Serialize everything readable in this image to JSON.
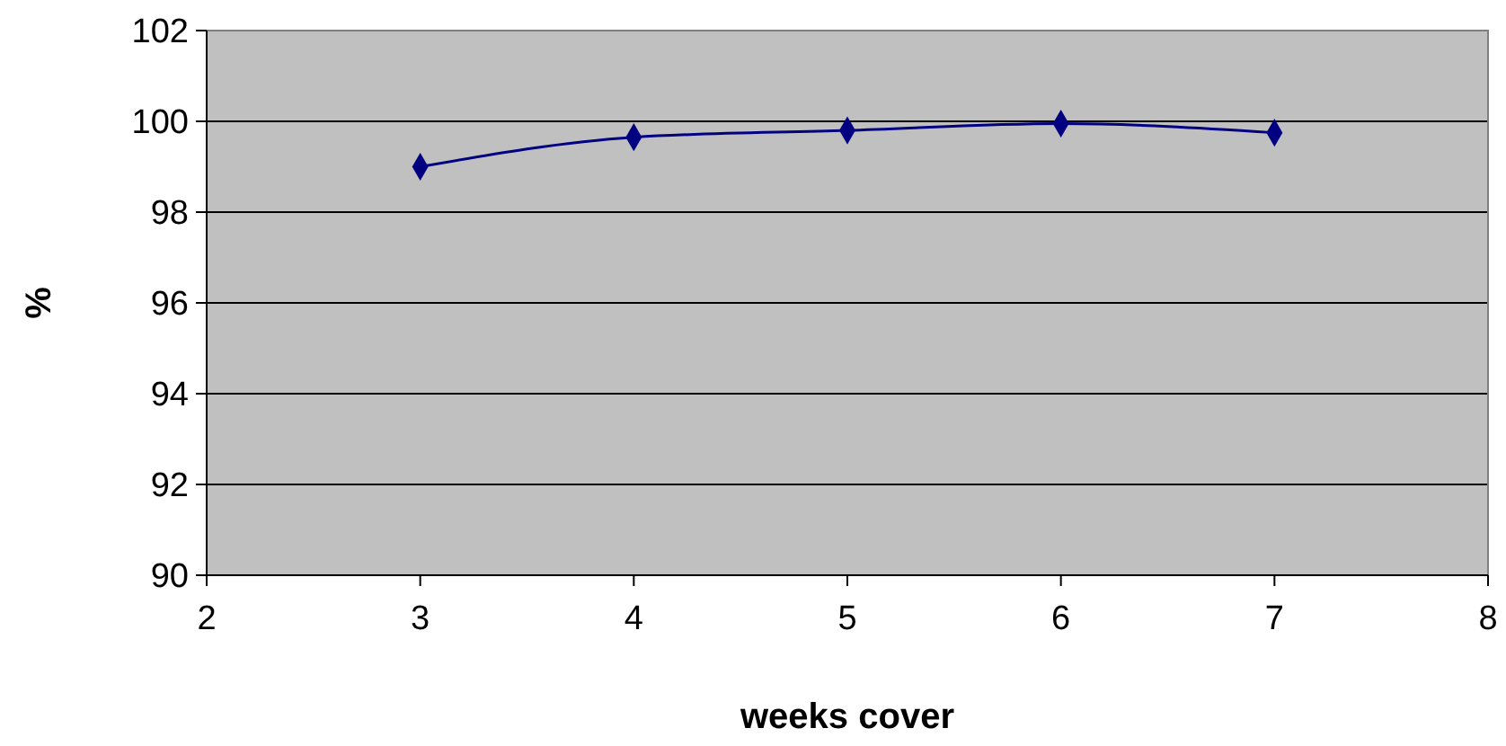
{
  "chart_data": {
    "type": "line",
    "xlabel": "weeks cover",
    "ylabel": "%",
    "x": [
      3,
      4,
      5,
      6,
      7
    ],
    "series": [
      {
        "color": "#000080",
        "values": [
          99.0,
          99.65,
          99.8,
          99.95,
          99.75
        ]
      }
    ],
    "xlim": [
      2,
      8
    ],
    "xticks": [
      2,
      3,
      4,
      5,
      6,
      7,
      8
    ],
    "ylim": [
      90,
      102
    ],
    "yticks": [
      90,
      92,
      94,
      96,
      98,
      100,
      102
    ],
    "grid": "y",
    "marker": "diamond",
    "line_style": "solid"
  }
}
